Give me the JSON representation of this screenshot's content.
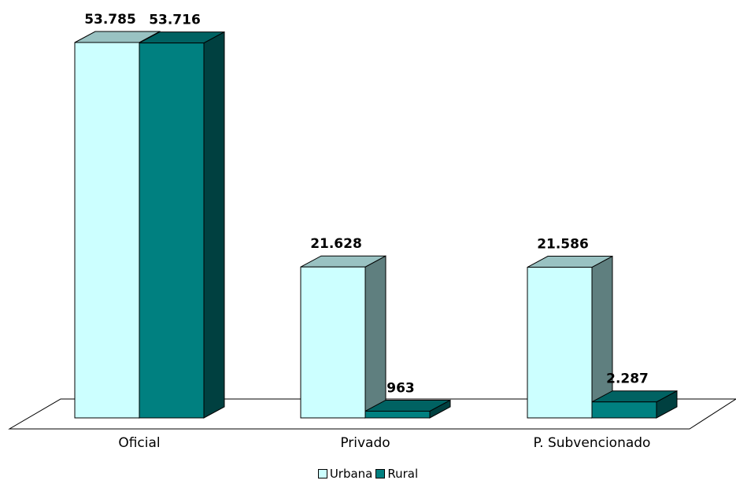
{
  "chart_data": {
    "type": "bar",
    "title": "",
    "xlabel": "",
    "ylabel": "",
    "categories": [
      "Oficial",
      "Privado",
      "P. Subvencionado"
    ],
    "series": [
      {
        "name": "Urbana",
        "values": [
          53785,
          21628,
          21586
        ],
        "labels": [
          "53.785",
          "21.628",
          "21.586"
        ],
        "color": "#ccffff"
      },
      {
        "name": "Rural",
        "values": [
          53716,
          963,
          2287
        ],
        "labels": [
          "53.716",
          "963",
          "2.287"
        ],
        "color": "#008080"
      }
    ],
    "ylim": [
      0,
      53785
    ],
    "grid": false,
    "legend_position": "bottom",
    "three_d": true
  }
}
